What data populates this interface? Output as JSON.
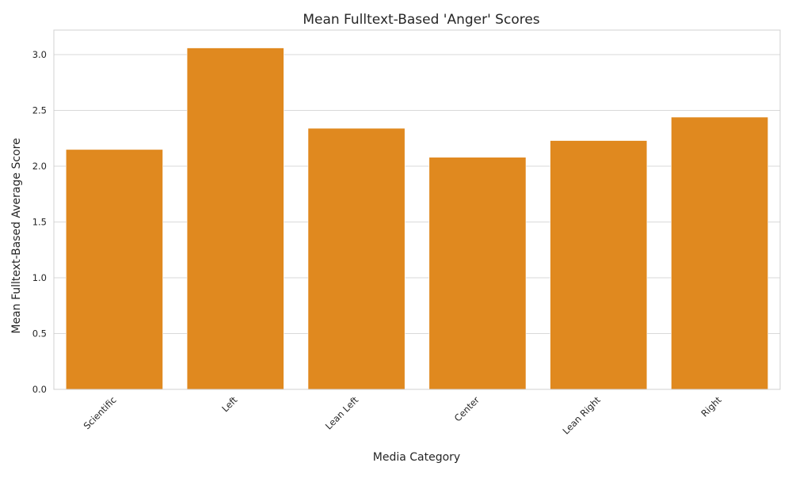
{
  "chart_data": {
    "type": "bar",
    "title": "Mean Fulltext-Based 'Anger' Scores",
    "xlabel": "Media Category",
    "ylabel": "Mean Fulltext-Based Average Score",
    "categories": [
      "Scientific",
      "Left",
      "Lean Left",
      "Center",
      "Lean Right",
      "Right"
    ],
    "values": [
      2.15,
      3.06,
      2.34,
      2.08,
      2.23,
      2.44
    ],
    "ylim": [
      0,
      3.22
    ],
    "yticks": [
      "0.0",
      "0.5",
      "1.0",
      "1.5",
      "2.0",
      "2.5",
      "3.0"
    ],
    "grid": "y",
    "colors": {
      "bar": "#e0891f",
      "grid": "#d9d9d9",
      "frame": "#d0d0d0",
      "text": "#262626"
    }
  }
}
